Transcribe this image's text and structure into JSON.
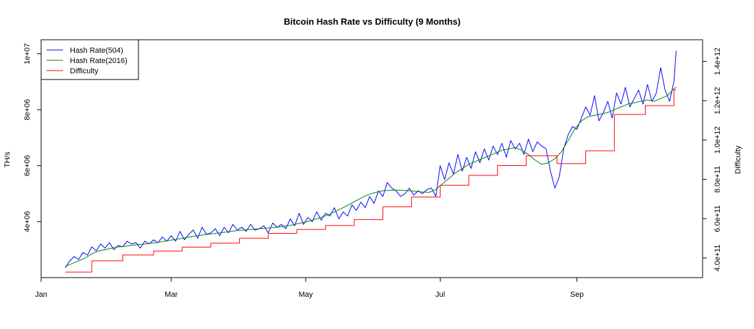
{
  "chart_data": {
    "type": "line",
    "title": "Bitcoin Hash Rate vs Difficulty (9 Months)",
    "ylabel_left": "TH/s",
    "ylabel_right": "Difficulty",
    "x_ticks": [
      {
        "label": "Jan",
        "day": 0
      },
      {
        "label": "Mar",
        "day": 59
      },
      {
        "label": "May",
        "day": 120
      },
      {
        "label": "Jul",
        "day": 181
      },
      {
        "label": "Sep",
        "day": 243
      }
    ],
    "xlim": [
      0,
      300
    ],
    "ylim_left": [
      2000000,
      10500000
    ],
    "ylim_right": [
      300000000000,
      1510000000000
    ],
    "y_ticks_left": [
      {
        "label": "4e+06",
        "value": 4000000
      },
      {
        "label": "6e+06",
        "value": 6000000
      },
      {
        "label": "8e+06",
        "value": 8000000
      },
      {
        "label": "1e+07",
        "value": 10000000
      }
    ],
    "y_ticks_right": [
      {
        "label": "4.0e+11",
        "value": 400000000000
      },
      {
        "label": "6.0e+11",
        "value": 600000000000
      },
      {
        "label": "8.0e+11",
        "value": 800000000000
      },
      {
        "label": "1.0e+12",
        "value": 1000000000000
      },
      {
        "label": "1.2e+12",
        "value": 1200000000000
      },
      {
        "label": "1.4e+12",
        "value": 1400000000000
      }
    ],
    "legend_position": "top-left",
    "series": [
      {
        "name": "Hash Rate(504)",
        "color": "#0000ff",
        "axis": "left",
        "x": [
          11,
          13,
          15,
          17,
          19,
          21,
          23,
          25,
          27,
          29,
          31,
          33,
          35,
          37,
          39,
          41,
          43,
          45,
          47,
          49,
          51,
          53,
          55,
          57,
          59,
          61,
          63,
          65,
          67,
          69,
          71,
          73,
          75,
          77,
          79,
          81,
          83,
          85,
          87,
          89,
          91,
          93,
          95,
          97,
          99,
          101,
          103,
          105,
          107,
          109,
          111,
          113,
          115,
          117,
          119,
          121,
          123,
          125,
          127,
          129,
          131,
          133,
          135,
          137,
          139,
          141,
          143,
          145,
          147,
          149,
          151,
          153,
          155,
          157,
          159,
          161,
          163,
          165,
          167,
          169,
          171,
          173,
          175,
          177,
          179,
          181,
          183,
          185,
          187,
          189,
          191,
          193,
          195,
          197,
          199,
          201,
          203,
          205,
          207,
          209,
          211,
          213,
          215,
          217,
          219,
          221,
          223,
          225,
          227,
          229,
          231,
          233,
          235,
          237,
          239,
          241,
          243,
          245,
          247,
          249,
          251,
          253,
          255,
          257,
          259,
          261,
          263,
          265,
          267,
          269,
          271,
          273,
          275,
          277,
          279,
          281,
          283,
          285,
          287,
          288
        ],
        "y": [
          2350000,
          2600000,
          2750000,
          2650000,
          2900000,
          2800000,
          3100000,
          2950000,
          3200000,
          3050000,
          3250000,
          3000000,
          3150000,
          3100000,
          3300000,
          3200000,
          3250000,
          3050000,
          3300000,
          3200000,
          3350000,
          3250000,
          3450000,
          3300000,
          3500000,
          3300000,
          3650000,
          3350000,
          3550000,
          3700000,
          3400000,
          3800000,
          3550000,
          3600000,
          3750000,
          3500000,
          3800000,
          3600000,
          3900000,
          3700000,
          3800000,
          3650000,
          3900000,
          3700000,
          3750000,
          3850000,
          3600000,
          3950000,
          3800000,
          3900000,
          3750000,
          4100000,
          3850000,
          4300000,
          3900000,
          4150000,
          4000000,
          4350000,
          4050000,
          4300000,
          4200000,
          4500000,
          4100000,
          4350000,
          4200000,
          4600000,
          4400000,
          4700000,
          4500000,
          4900000,
          4650000,
          5100000,
          4900000,
          5400000,
          5200000,
          5100000,
          4900000,
          5000000,
          5200000,
          4950000,
          5100000,
          5000000,
          5150000,
          5200000,
          4900000,
          6000000,
          5500000,
          6100000,
          5700000,
          6400000,
          5800000,
          6300000,
          5900000,
          6500000,
          6100000,
          6600000,
          6200000,
          6700000,
          6400000,
          6800000,
          6300000,
          6900000,
          6600000,
          6800000,
          6400000,
          6950000,
          6500000,
          6850000,
          6700000,
          6600000,
          5800000,
          5200000,
          5600000,
          6600000,
          7100000,
          7400000,
          7300000,
          7700000,
          8100000,
          7800000,
          8500000,
          7600000,
          7900000,
          8300000,
          7700000,
          8600000,
          8200000,
          8800000,
          8100000,
          8400000,
          8700000,
          8200000,
          8900000,
          8300000,
          8600000,
          9500000,
          8700000,
          8300000,
          9000000,
          10100000
        ]
      },
      {
        "name": "Hash Rate(2016)",
        "color": "#008000",
        "axis": "left",
        "x": [
          11,
          14,
          17,
          20,
          23,
          26,
          29,
          32,
          35,
          38,
          41,
          44,
          47,
          50,
          53,
          56,
          59,
          62,
          65,
          68,
          71,
          74,
          77,
          80,
          83,
          86,
          89,
          92,
          95,
          98,
          101,
          104,
          107,
          110,
          113,
          116,
          119,
          122,
          125,
          128,
          131,
          134,
          137,
          140,
          143,
          146,
          149,
          152,
          155,
          158,
          161,
          164,
          167,
          170,
          173,
          176,
          179,
          182,
          185,
          188,
          191,
          194,
          197,
          200,
          203,
          206,
          209,
          212,
          215,
          218,
          221,
          224,
          227,
          230,
          233,
          236,
          239,
          242,
          245,
          248,
          251,
          254,
          257,
          260,
          263,
          266,
          269,
          272,
          275,
          278,
          281,
          284,
          287,
          288
        ],
        "y": [
          2400000,
          2500000,
          2600000,
          2700000,
          2850000,
          2950000,
          3000000,
          3050000,
          3100000,
          3120000,
          3150000,
          3180000,
          3200000,
          3230000,
          3260000,
          3300000,
          3340000,
          3380000,
          3420000,
          3460000,
          3500000,
          3530000,
          3560000,
          3590000,
          3620000,
          3650000,
          3680000,
          3700000,
          3720000,
          3740000,
          3760000,
          3780000,
          3800000,
          3830000,
          3870000,
          3920000,
          3970000,
          4030000,
          4100000,
          4180000,
          4270000,
          4380000,
          4500000,
          4620000,
          4750000,
          4880000,
          4980000,
          5050000,
          5100000,
          5120000,
          5130000,
          5120000,
          5100000,
          5080000,
          5060000,
          5050000,
          5150000,
          5350000,
          5550000,
          5750000,
          5900000,
          6050000,
          6150000,
          6250000,
          6350000,
          6450000,
          6550000,
          6600000,
          6650000,
          6550000,
          6400000,
          6200000,
          6050000,
          6100000,
          6250000,
          6500000,
          6900000,
          7300000,
          7600000,
          7750000,
          7800000,
          7850000,
          7900000,
          8000000,
          8100000,
          8200000,
          8250000,
          8300000,
          8350000,
          8300000,
          8400000,
          8500000,
          8750000,
          8800000
        ]
      },
      {
        "name": "Difficulty",
        "color": "#ff0000",
        "axis": "right",
        "x": [
          11,
          23,
          23,
          37,
          37,
          51,
          51,
          64,
          64,
          77,
          77,
          90,
          90,
          103,
          103,
          116,
          116,
          129,
          129,
          142,
          142,
          155,
          155,
          168,
          168,
          181,
          181,
          194,
          194,
          207,
          207,
          220,
          220,
          234,
          234,
          247,
          247,
          260,
          260,
          274,
          274,
          287,
          287,
          288
        ],
        "y": [
          328000000000,
          328000000000,
          385000000000,
          385000000000,
          415000000000,
          415000000000,
          435000000000,
          435000000000,
          455000000000,
          455000000000,
          475000000000,
          475000000000,
          500000000000,
          500000000000,
          525000000000,
          525000000000,
          545000000000,
          545000000000,
          565000000000,
          565000000000,
          595000000000,
          595000000000,
          660000000000,
          660000000000,
          710000000000,
          710000000000,
          770000000000,
          770000000000,
          820000000000,
          820000000000,
          870000000000,
          870000000000,
          920000000000,
          920000000000,
          880000000000,
          880000000000,
          945000000000,
          945000000000,
          1130000000000,
          1130000000000,
          1175000000000,
          1175000000000,
          1255000000000,
          1255000000000
        ]
      }
    ]
  }
}
